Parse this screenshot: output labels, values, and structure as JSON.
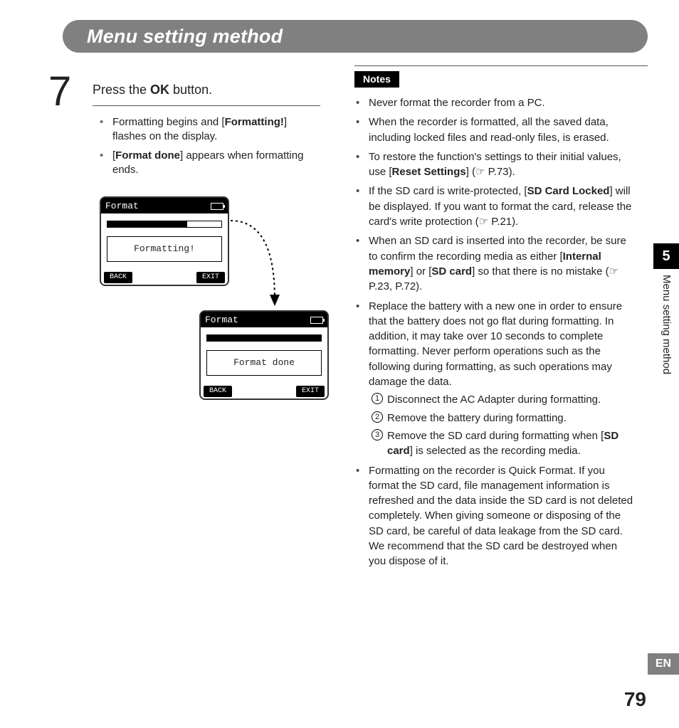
{
  "title": "Menu setting method",
  "step_number": "7",
  "step_text_prefix": "Press the ",
  "step_text_bold": "OK",
  "step_text_suffix": " button.",
  "left_items": [
    {
      "pre": "Formatting begins and [",
      "bold": "Formatting!",
      "post": "] flashes on the display."
    },
    {
      "pre": "[",
      "bold": "Format done",
      "post": "] appears when formatting ends."
    }
  ],
  "lcd": {
    "title": "Format",
    "msg1": "Formatting!",
    "msg2": "Format done",
    "back": "BACK",
    "exit": "EXIT",
    "progress1_pct": 70,
    "progress2_pct": 100
  },
  "notes_label": "Notes",
  "notes": [
    {
      "segments": [
        {
          "t": "Never format the recorder from a PC."
        }
      ]
    },
    {
      "segments": [
        {
          "t": "When the recorder is formatted, all the saved data, including locked files and read-only files, is erased."
        }
      ]
    },
    {
      "segments": [
        {
          "t": "To restore the function's settings to their initial values, use ["
        },
        {
          "t": "Reset Settings",
          "b": true
        },
        {
          "t": "] (☞ P.73)."
        }
      ]
    },
    {
      "segments": [
        {
          "t": "If the SD card is write-protected, ["
        },
        {
          "t": "SD Card Locked",
          "b": true
        },
        {
          "t": "] will be displayed. If you want to format the card, release the card's write protection (☞ P.21)."
        }
      ]
    },
    {
      "segments": [
        {
          "t": "When an SD card is inserted into the recorder, be sure to confirm the recording media as either ["
        },
        {
          "t": "Internal memory",
          "b": true
        },
        {
          "t": "] or ["
        },
        {
          "t": "SD card",
          "b": true
        },
        {
          "t": "] so that there is no mistake (☞ P.23, P.72)."
        }
      ]
    },
    {
      "segments": [
        {
          "t": "Replace the battery with a new one in order to ensure that the battery does not go flat during formatting. In addition, it may take over 10 seconds to complete formatting. Never perform operations such as the following during formatting, as such operations may damage the data."
        }
      ],
      "sub": [
        {
          "n": "1",
          "segments": [
            {
              "t": "Disconnect the AC Adapter during formatting."
            }
          ]
        },
        {
          "n": "2",
          "segments": [
            {
              "t": "Remove the battery during formatting."
            }
          ]
        },
        {
          "n": "3",
          "segments": [
            {
              "t": "Remove the SD card during formatting when ["
            },
            {
              "t": "SD card",
              "b": true
            },
            {
              "t": "] is selected as the recording media."
            }
          ]
        }
      ]
    },
    {
      "segments": [
        {
          "t": "Formatting on the recorder is Quick Format. If you format the SD card, file management information is refreshed and the data inside the SD card is not deleted completely. When giving someone or disposing of the SD card, be careful of data leakage from the SD card. We recommend that the SD card be destroyed when you dispose of it."
        }
      ]
    }
  ],
  "side": {
    "chapter": "5",
    "label": "Menu setting method",
    "lang": "EN",
    "page": "79"
  },
  "colors": {
    "bar": "#808080",
    "text": "#222222",
    "tab_black": "#000000",
    "tab_gray": "#808080"
  }
}
